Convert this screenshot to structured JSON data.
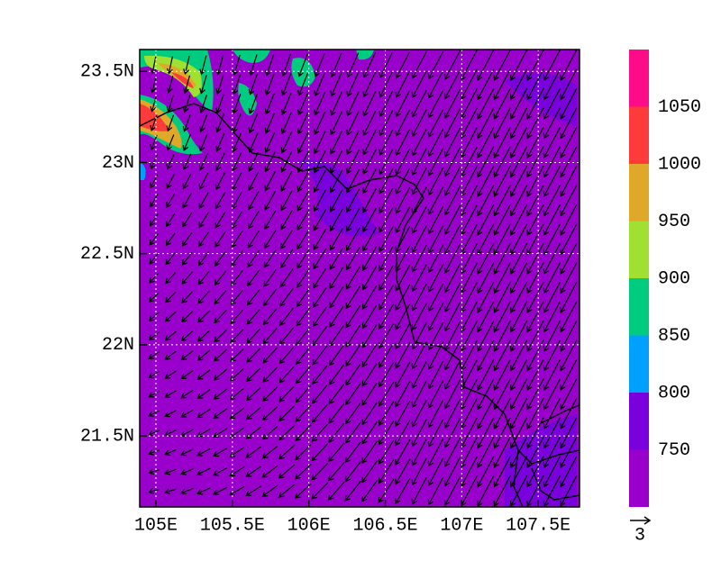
{
  "map": {
    "xlim": [
      104.894,
      107.77
    ],
    "ylim": [
      21.11,
      23.62
    ],
    "xticks": [
      {
        "value": 105,
        "label": "105E"
      },
      {
        "value": 105.5,
        "label": "105.5E"
      },
      {
        "value": 106,
        "label": "106E"
      },
      {
        "value": 106.5,
        "label": "106.5E"
      },
      {
        "value": 107,
        "label": "107E"
      },
      {
        "value": 107.5,
        "label": "107.5E"
      }
    ],
    "yticks": [
      {
        "value": 21.5,
        "label": "21.5N"
      },
      {
        "value": 22,
        "label": "22N"
      },
      {
        "value": 22.5,
        "label": "22.5N"
      },
      {
        "value": 23,
        "label": "23N"
      },
      {
        "value": 23.5,
        "label": "23.5N"
      }
    ],
    "grid": true,
    "colorbar": {
      "levels": [
        750,
        800,
        850,
        900,
        950,
        1000,
        1050
      ],
      "colors": [
        "#9900cc",
        "#7a00dd",
        "#00a0ff",
        "#00cc80",
        "#a0e030",
        "#e0a828",
        "#ff3a3a",
        "#ff0a88"
      ]
    },
    "vector_reference": {
      "label": "3"
    }
  }
}
